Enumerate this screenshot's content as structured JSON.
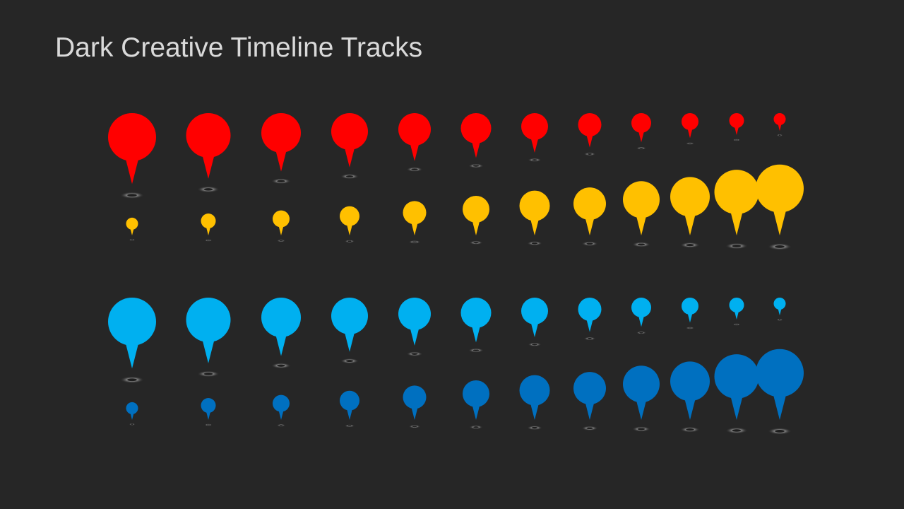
{
  "slide": {
    "title": "Dark Creative Timeline Tracks"
  },
  "tracks": [
    {
      "name": "red-track",
      "color": "#ff0000",
      "size_order": "descending",
      "pin_count": 12
    },
    {
      "name": "yellow-track",
      "color": "#ffc000",
      "size_order": "ascending",
      "pin_count": 12
    },
    {
      "name": "light-blue-track",
      "color": "#00b0f0",
      "size_order": "descending",
      "pin_count": 12
    },
    {
      "name": "dark-blue-track",
      "color": "#0070c0",
      "size_order": "ascending",
      "pin_count": 12
    }
  ],
  "shadow_color": "#7f7f7f"
}
